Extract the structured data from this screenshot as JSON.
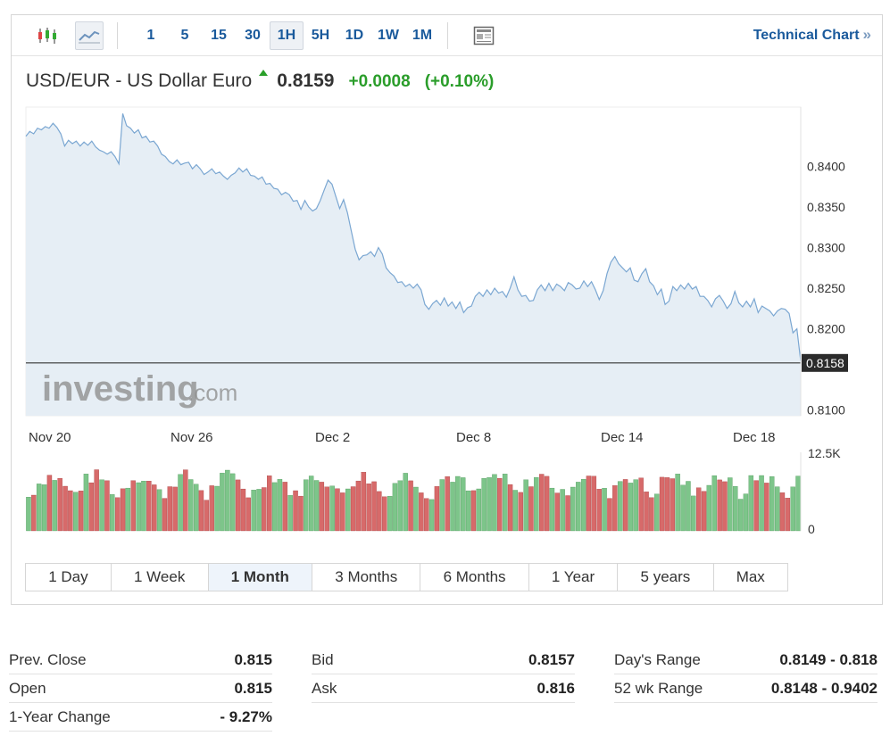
{
  "toolbar": {
    "icons": [
      "candlestick-icon",
      "line-chart-icon",
      "news-layout-icon"
    ],
    "intervals": [
      "1",
      "5",
      "15",
      "30",
      "1H",
      "5H",
      "1D",
      "1W",
      "1M"
    ],
    "active_interval": "1H",
    "technical_chart_label": "Technical Chart",
    "technical_chart_chevron": "»"
  },
  "quote": {
    "name": "USD/EUR - US Dollar Euro",
    "price": "0.8159",
    "change": "+0.0008",
    "change_pct": "(+0.10%)",
    "direction": "up",
    "up_color": "#2a9d2a"
  },
  "watermark": {
    "brand": "investing",
    "suffix": ".com"
  },
  "chart_data": {
    "type": "area",
    "x_ticks": [
      "Nov 20",
      "Nov 26",
      "Dec 2",
      "Dec 8",
      "Dec 14",
      "Dec 18"
    ],
    "y_ticks": [
      "0.8400",
      "0.8350",
      "0.8300",
      "0.8250",
      "0.8200",
      "0.8100"
    ],
    "ylim": [
      0.8093,
      0.8473
    ],
    "last_price_label": "0.8158",
    "last_price": 0.8158,
    "line_color": "#7ba7d2",
    "fill_color": "#e6eef5",
    "x_range": [
      0,
      100
    ],
    "series": [
      {
        "points": [
          [
            0,
            0.8437
          ],
          [
            0.5,
            0.8443
          ],
          [
            1,
            0.844
          ],
          [
            1.5,
            0.8447
          ],
          [
            2,
            0.8445
          ],
          [
            2.5,
            0.8449
          ],
          [
            3,
            0.8447
          ],
          [
            3.5,
            0.8453
          ],
          [
            4,
            0.8448
          ],
          [
            4.5,
            0.844
          ],
          [
            5,
            0.8425
          ],
          [
            5.5,
            0.8432
          ],
          [
            6,
            0.8428
          ],
          [
            6.5,
            0.8431
          ],
          [
            7,
            0.8425
          ],
          [
            7.5,
            0.843
          ],
          [
            8,
            0.8426
          ],
          [
            8.5,
            0.8431
          ],
          [
            9,
            0.8424
          ],
          [
            9.5,
            0.842
          ],
          [
            10,
            0.8418
          ],
          [
            10.5,
            0.8415
          ],
          [
            11,
            0.8418
          ],
          [
            11.5,
            0.8412
          ],
          [
            12,
            0.8403
          ],
          [
            12.5,
            0.8465
          ],
          [
            13,
            0.845
          ],
          [
            13.5,
            0.8447
          ],
          [
            14,
            0.8441
          ],
          [
            14.5,
            0.8445
          ],
          [
            15,
            0.8435
          ],
          [
            15.5,
            0.8437
          ],
          [
            16,
            0.843
          ],
          [
            16.5,
            0.8431
          ],
          [
            17,
            0.8425
          ],
          [
            17.5,
            0.8415
          ],
          [
            18,
            0.8412
          ],
          [
            18.5,
            0.8406
          ],
          [
            19,
            0.8403
          ],
          [
            19.5,
            0.8408
          ],
          [
            20,
            0.8402
          ],
          [
            20.5,
            0.8404
          ],
          [
            21,
            0.8405
          ],
          [
            21.5,
            0.8397
          ],
          [
            22,
            0.8402
          ],
          [
            22.5,
            0.8397
          ],
          [
            23,
            0.839
          ],
          [
            23.5,
            0.8393
          ],
          [
            24,
            0.8397
          ],
          [
            24.5,
            0.8391
          ],
          [
            25,
            0.8393
          ],
          [
            25.5,
            0.8388
          ],
          [
            26,
            0.8384
          ],
          [
            26.5,
            0.8389
          ],
          [
            27,
            0.8392
          ],
          [
            27.5,
            0.8398
          ],
          [
            28,
            0.8393
          ],
          [
            28.5,
            0.8397
          ],
          [
            29,
            0.8389
          ],
          [
            29.5,
            0.8388
          ],
          [
            30,
            0.8384
          ],
          [
            30.5,
            0.8387
          ],
          [
            31,
            0.8378
          ],
          [
            31.5,
            0.8379
          ],
          [
            32,
            0.8373
          ],
          [
            32.5,
            0.8372
          ],
          [
            33,
            0.8365
          ],
          [
            33.5,
            0.8368
          ],
          [
            34,
            0.8365
          ],
          [
            34.5,
            0.8357
          ],
          [
            35,
            0.8358
          ],
          [
            35.5,
            0.8347
          ],
          [
            36,
            0.8358
          ],
          [
            36.5,
            0.835
          ],
          [
            37,
            0.8345
          ],
          [
            37.5,
            0.8348
          ],
          [
            38,
            0.8358
          ],
          [
            38.5,
            0.8371
          ],
          [
            39,
            0.8383
          ],
          [
            39.5,
            0.8378
          ],
          [
            40,
            0.8363
          ],
          [
            40.5,
            0.8348
          ],
          [
            41,
            0.8359
          ],
          [
            41.5,
            0.8343
          ],
          [
            42,
            0.832
          ],
          [
            42.5,
            0.8298
          ],
          [
            43,
            0.8285
          ],
          [
            43.5,
            0.829
          ],
          [
            44,
            0.8291
          ],
          [
            44.5,
            0.8295
          ],
          [
            45,
            0.8289
          ],
          [
            45.5,
            0.83
          ],
          [
            46,
            0.8292
          ],
          [
            46.5,
            0.8275
          ],
          [
            47,
            0.8269
          ],
          [
            47.5,
            0.8265
          ],
          [
            48,
            0.8257
          ],
          [
            48.5,
            0.8258
          ],
          [
            49,
            0.8252
          ],
          [
            49.5,
            0.8255
          ],
          [
            50,
            0.825
          ],
          [
            50.5,
            0.8255
          ],
          [
            51,
            0.8248
          ],
          [
            51.5,
            0.823
          ],
          [
            52,
            0.8224
          ],
          [
            52.5,
            0.8231
          ],
          [
            53,
            0.8235
          ],
          [
            53.5,
            0.8229
          ],
          [
            54,
            0.8238
          ],
          [
            54.5,
            0.8228
          ],
          [
            55,
            0.8233
          ],
          [
            55.5,
            0.8225
          ],
          [
            56,
            0.8233
          ],
          [
            56.5,
            0.822
          ],
          [
            57,
            0.8226
          ],
          [
            57.5,
            0.8228
          ],
          [
            58,
            0.824
          ],
          [
            58.5,
            0.8245
          ],
          [
            59,
            0.824
          ],
          [
            59.5,
            0.8248
          ],
          [
            60,
            0.8242
          ],
          [
            60.5,
            0.825
          ],
          [
            61,
            0.8244
          ],
          [
            61.5,
            0.8246
          ],
          [
            62,
            0.8239
          ],
          [
            62.5,
            0.825
          ],
          [
            63,
            0.8264
          ],
          [
            63.5,
            0.8248
          ],
          [
            64,
            0.824
          ],
          [
            64.5,
            0.8241
          ],
          [
            65,
            0.8234
          ],
          [
            65.5,
            0.8235
          ],
          [
            66,
            0.8248
          ],
          [
            66.5,
            0.8254
          ],
          [
            67,
            0.8247
          ],
          [
            67.5,
            0.8256
          ],
          [
            68,
            0.8247
          ],
          [
            68.5,
            0.8255
          ],
          [
            69,
            0.8252
          ],
          [
            69.5,
            0.8247
          ],
          [
            70,
            0.8257
          ],
          [
            70.5,
            0.8254
          ],
          [
            71,
            0.8249
          ],
          [
            71.5,
            0.825
          ],
          [
            72,
            0.8259
          ],
          [
            72.5,
            0.8252
          ],
          [
            73,
            0.8258
          ],
          [
            73.5,
            0.8248
          ],
          [
            74,
            0.8236
          ],
          [
            74.5,
            0.8247
          ],
          [
            75,
            0.8268
          ],
          [
            75.5,
            0.8282
          ],
          [
            76,
            0.8289
          ],
          [
            76.5,
            0.828
          ],
          [
            77,
            0.8275
          ],
          [
            77.5,
            0.827
          ],
          [
            78,
            0.8275
          ],
          [
            78.5,
            0.826
          ],
          [
            79,
            0.8258
          ],
          [
            79.5,
            0.8268
          ],
          [
            80,
            0.8274
          ],
          [
            80.5,
            0.8258
          ],
          [
            81,
            0.8253
          ],
          [
            81.5,
            0.8242
          ],
          [
            82,
            0.8249
          ],
          [
            82.5,
            0.823
          ],
          [
            83,
            0.8234
          ],
          [
            83.5,
            0.8252
          ],
          [
            84,
            0.8247
          ],
          [
            84.5,
            0.8254
          ],
          [
            85,
            0.8249
          ],
          [
            85.5,
            0.8256
          ],
          [
            86,
            0.8249
          ],
          [
            86.5,
            0.8252
          ],
          [
            87,
            0.824
          ],
          [
            87.5,
            0.824
          ],
          [
            88,
            0.8235
          ],
          [
            88.5,
            0.8227
          ],
          [
            89,
            0.8237
          ],
          [
            89.5,
            0.8241
          ],
          [
            90,
            0.8234
          ],
          [
            90.5,
            0.8225
          ],
          [
            91,
            0.8231
          ],
          [
            91.5,
            0.8246
          ],
          [
            92,
            0.8232
          ],
          [
            92.5,
            0.8227
          ],
          [
            93,
            0.8234
          ],
          [
            93.5,
            0.8227
          ],
          [
            94,
            0.8237
          ],
          [
            94.5,
            0.822
          ],
          [
            95,
            0.8228
          ],
          [
            95.5,
            0.8225
          ],
          [
            96,
            0.8222
          ],
          [
            96.5,
            0.8216
          ],
          [
            97,
            0.8222
          ],
          [
            97.5,
            0.8225
          ],
          [
            98,
            0.8224
          ],
          [
            98.5,
            0.8219
          ],
          [
            99,
            0.8195
          ],
          [
            99.5,
            0.82
          ],
          [
            100,
            0.816
          ]
        ]
      }
    ],
    "volume": {
      "y_ticks": [
        "12.5K",
        "0"
      ],
      "ylim": [
        0,
        12500
      ],
      "up_color": "#7dc58a",
      "down_color": "#d76a6a",
      "bar_count": 148
    }
  },
  "ranges": [
    {
      "label": "1 Day",
      "active": false
    },
    {
      "label": "1 Week",
      "active": false
    },
    {
      "label": "1 Month",
      "active": true
    },
    {
      "label": "3 Months",
      "active": false
    },
    {
      "label": "6 Months",
      "active": false
    },
    {
      "label": "1 Year",
      "active": false
    },
    {
      "label": "5 years",
      "active": false
    },
    {
      "label": "Max",
      "active": false
    }
  ],
  "stats": {
    "col1": [
      {
        "label": "Prev. Close",
        "value": "0.815"
      },
      {
        "label": "Open",
        "value": "0.815"
      },
      {
        "label": "1-Year Change",
        "value": "- 9.27%"
      }
    ],
    "col2": [
      {
        "label": "Bid",
        "value": "0.8157"
      },
      {
        "label": "Ask",
        "value": "0.816"
      }
    ],
    "col3": [
      {
        "label": "Day's Range",
        "value": "0.8149 - 0.818"
      },
      {
        "label": "52 wk Range",
        "value": "0.8148 - 0.9402"
      }
    ]
  }
}
